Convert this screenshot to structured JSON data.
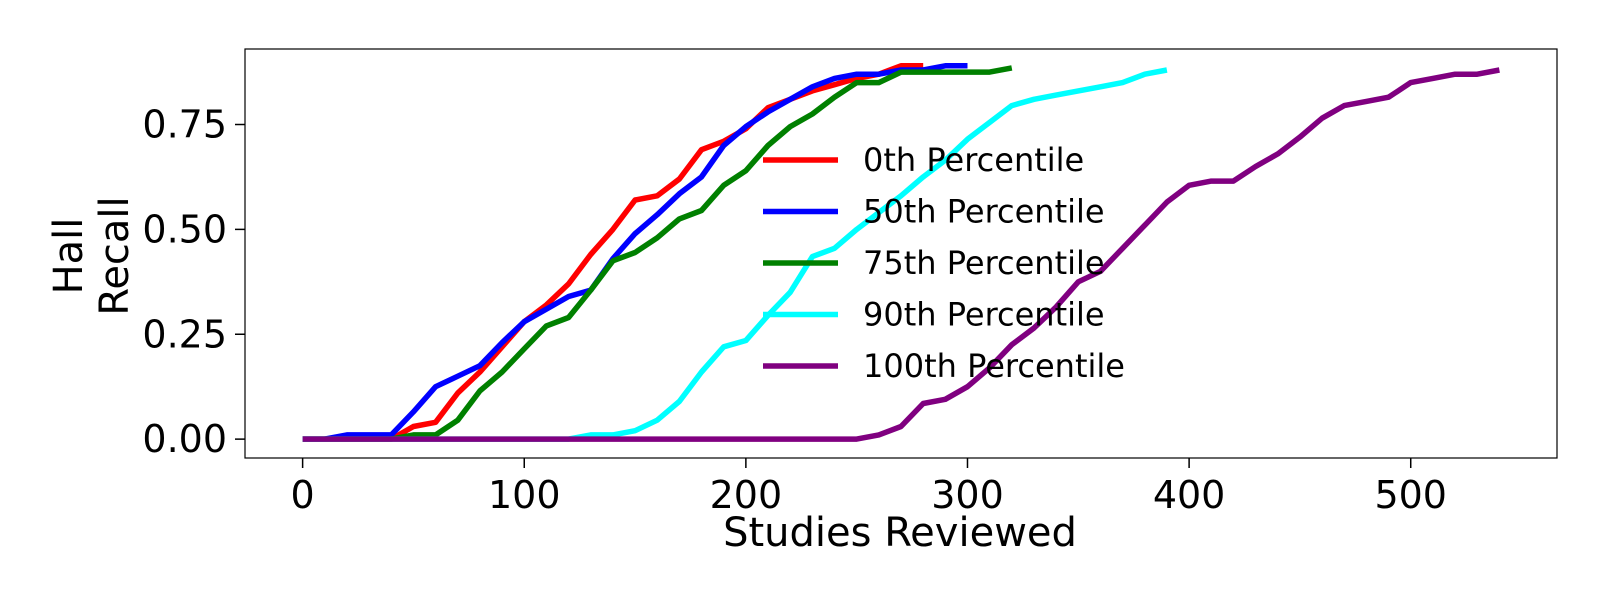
{
  "chart_data": {
    "type": "line",
    "xlabel": "Studies Reviewed",
    "ylabel_lines": [
      "Hall",
      "Recall"
    ],
    "xlim": [
      -26,
      566
    ],
    "ylim": [
      -0.045,
      0.93
    ],
    "xticks": [
      0,
      100,
      200,
      300,
      400,
      500
    ],
    "xtick_labels": [
      "0",
      "100",
      "200",
      "300",
      "400",
      "500"
    ],
    "yticks": [
      0,
      0.25,
      0.5,
      0.75
    ],
    "ytick_labels": [
      "0.00",
      "0.25",
      "0.50",
      "0.75"
    ],
    "grid": false,
    "legend_position": "center",
    "series": [
      {
        "name": "0th Percentile",
        "color": "#ff0000",
        "points": [
          [
            0,
            0
          ],
          [
            10,
            0
          ],
          [
            20,
            0
          ],
          [
            30,
            0
          ],
          [
            40,
            0
          ],
          [
            50,
            0.03
          ],
          [
            60,
            0.04
          ],
          [
            70,
            0.11
          ],
          [
            80,
            0.16
          ],
          [
            90,
            0.22
          ],
          [
            100,
            0.28
          ],
          [
            110,
            0.32
          ],
          [
            120,
            0.37
          ],
          [
            130,
            0.44
          ],
          [
            140,
            0.5
          ],
          [
            150,
            0.57
          ],
          [
            160,
            0.58
          ],
          [
            170,
            0.62
          ],
          [
            180,
            0.69
          ],
          [
            190,
            0.71
          ],
          [
            200,
            0.74
          ],
          [
            210,
            0.79
          ],
          [
            220,
            0.81
          ],
          [
            230,
            0.83
          ],
          [
            240,
            0.845
          ],
          [
            250,
            0.86
          ],
          [
            260,
            0.87
          ],
          [
            270,
            0.89
          ],
          [
            280,
            0.89
          ]
        ]
      },
      {
        "name": "50th Percentile",
        "color": "#0000ff",
        "points": [
          [
            0,
            0
          ],
          [
            10,
            0
          ],
          [
            20,
            0.01
          ],
          [
            30,
            0.01
          ],
          [
            40,
            0.01
          ],
          [
            50,
            0.065
          ],
          [
            60,
            0.125
          ],
          [
            70,
            0.15
          ],
          [
            80,
            0.175
          ],
          [
            90,
            0.23
          ],
          [
            100,
            0.28
          ],
          [
            110,
            0.31
          ],
          [
            120,
            0.34
          ],
          [
            130,
            0.355
          ],
          [
            140,
            0.43
          ],
          [
            150,
            0.49
          ],
          [
            160,
            0.535
          ],
          [
            170,
            0.585
          ],
          [
            180,
            0.625
          ],
          [
            190,
            0.7
          ],
          [
            200,
            0.745
          ],
          [
            210,
            0.78
          ],
          [
            220,
            0.81
          ],
          [
            230,
            0.84
          ],
          [
            240,
            0.86
          ],
          [
            250,
            0.87
          ],
          [
            260,
            0.87
          ],
          [
            270,
            0.88
          ],
          [
            280,
            0.88
          ],
          [
            290,
            0.89
          ],
          [
            300,
            0.89
          ]
        ]
      },
      {
        "name": "75th Percentile",
        "color": "#008000",
        "points": [
          [
            0,
            0
          ],
          [
            10,
            0
          ],
          [
            20,
            0
          ],
          [
            30,
            0
          ],
          [
            40,
            0
          ],
          [
            50,
            0.01
          ],
          [
            60,
            0.01
          ],
          [
            70,
            0.045
          ],
          [
            80,
            0.115
          ],
          [
            90,
            0.16
          ],
          [
            100,
            0.215
          ],
          [
            110,
            0.27
          ],
          [
            120,
            0.29
          ],
          [
            130,
            0.355
          ],
          [
            140,
            0.425
          ],
          [
            150,
            0.445
          ],
          [
            160,
            0.48
          ],
          [
            170,
            0.525
          ],
          [
            180,
            0.545
          ],
          [
            190,
            0.605
          ],
          [
            200,
            0.64
          ],
          [
            210,
            0.7
          ],
          [
            220,
            0.745
          ],
          [
            230,
            0.775
          ],
          [
            240,
            0.815
          ],
          [
            250,
            0.85
          ],
          [
            260,
            0.85
          ],
          [
            270,
            0.875
          ],
          [
            280,
            0.875
          ],
          [
            290,
            0.875
          ],
          [
            300,
            0.875
          ],
          [
            310,
            0.875
          ],
          [
            320,
            0.885
          ]
        ]
      },
      {
        "name": "90th Percentile",
        "color": "#00ffff",
        "points": [
          [
            0,
            0
          ],
          [
            50,
            0
          ],
          [
            100,
            0
          ],
          [
            120,
            0
          ],
          [
            130,
            0.01
          ],
          [
            140,
            0.01
          ],
          [
            150,
            0.02
          ],
          [
            160,
            0.045
          ],
          [
            170,
            0.09
          ],
          [
            180,
            0.16
          ],
          [
            190,
            0.22
          ],
          [
            200,
            0.235
          ],
          [
            210,
            0.295
          ],
          [
            220,
            0.35
          ],
          [
            230,
            0.435
          ],
          [
            240,
            0.455
          ],
          [
            250,
            0.5
          ],
          [
            260,
            0.54
          ],
          [
            270,
            0.58
          ],
          [
            280,
            0.625
          ],
          [
            290,
            0.665
          ],
          [
            300,
            0.715
          ],
          [
            310,
            0.755
          ],
          [
            320,
            0.795
          ],
          [
            330,
            0.81
          ],
          [
            340,
            0.82
          ],
          [
            350,
            0.83
          ],
          [
            360,
            0.84
          ],
          [
            370,
            0.85
          ],
          [
            380,
            0.87
          ],
          [
            390,
            0.88
          ]
        ]
      },
      {
        "name": "100th Percentile",
        "color": "#800080",
        "points": [
          [
            0,
            0
          ],
          [
            50,
            0
          ],
          [
            100,
            0
          ],
          [
            150,
            0
          ],
          [
            200,
            0
          ],
          [
            250,
            0
          ],
          [
            260,
            0.01
          ],
          [
            270,
            0.03
          ],
          [
            280,
            0.085
          ],
          [
            290,
            0.095
          ],
          [
            300,
            0.125
          ],
          [
            310,
            0.17
          ],
          [
            320,
            0.225
          ],
          [
            330,
            0.265
          ],
          [
            340,
            0.315
          ],
          [
            350,
            0.375
          ],
          [
            360,
            0.4
          ],
          [
            370,
            0.455
          ],
          [
            380,
            0.51
          ],
          [
            390,
            0.565
          ],
          [
            400,
            0.605
          ],
          [
            410,
            0.615
          ],
          [
            420,
            0.615
          ],
          [
            430,
            0.65
          ],
          [
            440,
            0.68
          ],
          [
            450,
            0.72
          ],
          [
            460,
            0.765
          ],
          [
            470,
            0.795
          ],
          [
            480,
            0.805
          ],
          [
            490,
            0.815
          ],
          [
            500,
            0.85
          ],
          [
            510,
            0.86
          ],
          [
            520,
            0.87
          ],
          [
            530,
            0.87
          ],
          [
            540,
            0.88
          ]
        ]
      }
    ]
  }
}
